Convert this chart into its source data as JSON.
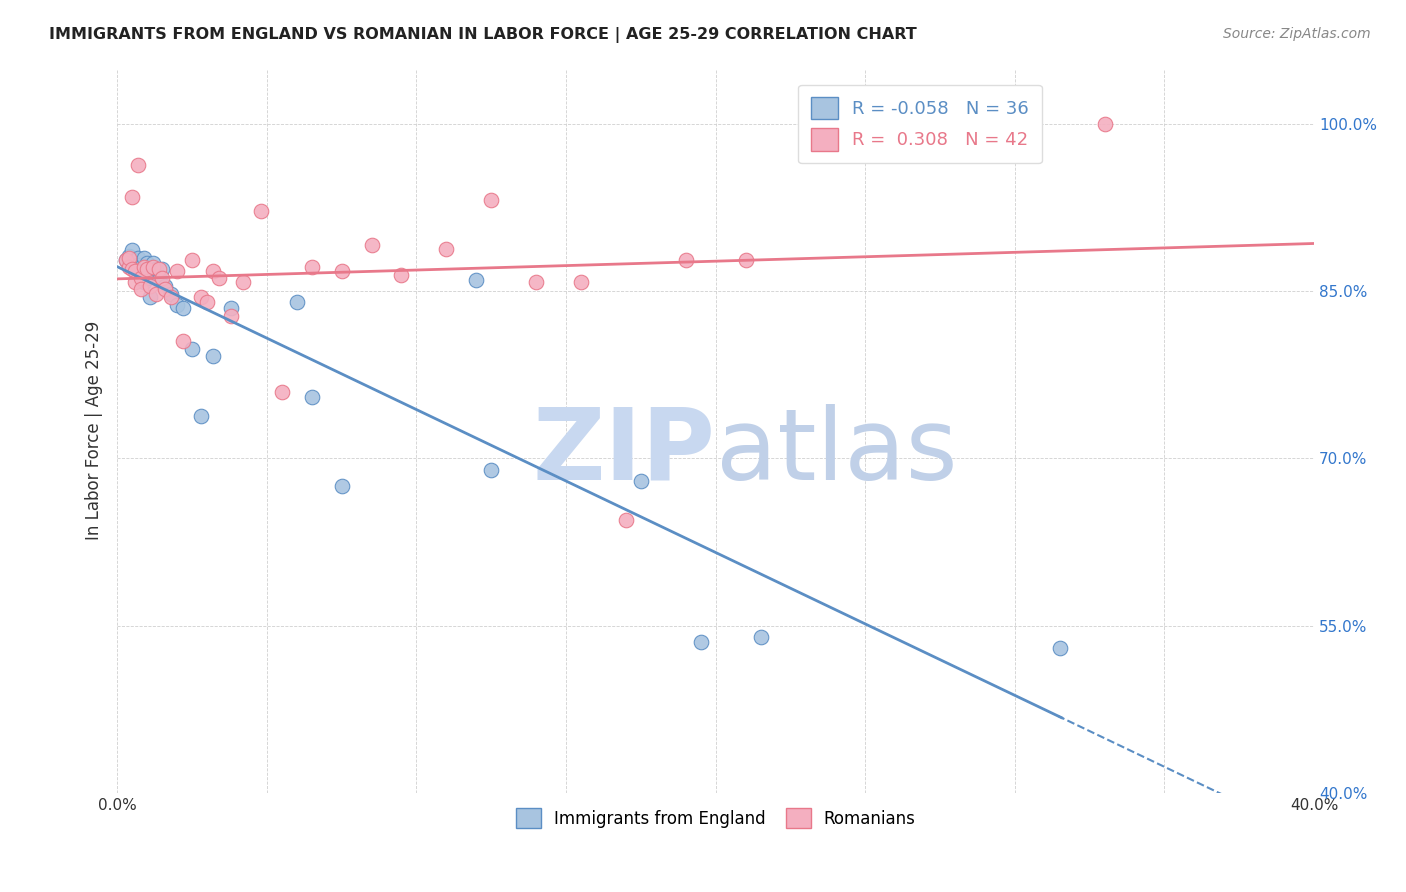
{
  "title": "IMMIGRANTS FROM ENGLAND VS ROMANIAN IN LABOR FORCE | AGE 25-29 CORRELATION CHART",
  "source": "Source: ZipAtlas.com",
  "ylabel": "In Labor Force | Age 25-29",
  "legend_labels": [
    "Immigrants from England",
    "Romanians"
  ],
  "R_england": -0.058,
  "N_england": 36,
  "R_romanian": 0.308,
  "N_romanian": 42,
  "england_color": "#a8c4e0",
  "romanian_color": "#f4afc0",
  "england_line_color": "#5b8ec4",
  "romanian_line_color": "#e8788a",
  "xlim": [
    0.0,
    0.4
  ],
  "ylim": [
    0.4,
    1.05
  ],
  "yticks": [
    0.4,
    0.55,
    0.7,
    0.85,
    1.0
  ],
  "ytick_labels": [
    "40.0%",
    "55.0%",
    "70.0%",
    "85.0%",
    "100.0%"
  ],
  "xticks": [
    0.0,
    0.05,
    0.1,
    0.15,
    0.2,
    0.25,
    0.3,
    0.35,
    0.4
  ],
  "xtick_labels": [
    "0.0%",
    "",
    "",
    "",
    "",
    "",
    "",
    "",
    "40.0%"
  ],
  "england_x": [
    0.003,
    0.004,
    0.004,
    0.005,
    0.006,
    0.006,
    0.007,
    0.007,
    0.008,
    0.008,
    0.009,
    0.009,
    0.01,
    0.01,
    0.011,
    0.012,
    0.013,
    0.014,
    0.015,
    0.016,
    0.018,
    0.02,
    0.022,
    0.025,
    0.028,
    0.032,
    0.038,
    0.06,
    0.065,
    0.075,
    0.12,
    0.125,
    0.175,
    0.195,
    0.215,
    0.315
  ],
  "england_y": [
    0.878,
    0.882,
    0.878,
    0.887,
    0.878,
    0.874,
    0.88,
    0.874,
    0.872,
    0.868,
    0.88,
    0.858,
    0.875,
    0.862,
    0.845,
    0.875,
    0.87,
    0.86,
    0.87,
    0.855,
    0.848,
    0.838,
    0.835,
    0.798,
    0.738,
    0.792,
    0.835,
    0.84,
    0.755,
    0.675,
    0.86,
    0.69,
    0.68,
    0.535,
    0.54,
    0.53
  ],
  "romanian_x": [
    0.003,
    0.004,
    0.004,
    0.005,
    0.005,
    0.006,
    0.006,
    0.007,
    0.008,
    0.008,
    0.009,
    0.01,
    0.011,
    0.012,
    0.013,
    0.014,
    0.015,
    0.016,
    0.018,
    0.02,
    0.022,
    0.025,
    0.028,
    0.03,
    0.032,
    0.034,
    0.038,
    0.042,
    0.048,
    0.055,
    0.065,
    0.075,
    0.085,
    0.095,
    0.11,
    0.125,
    0.14,
    0.155,
    0.17,
    0.19,
    0.21,
    0.33
  ],
  "romanian_y": [
    0.878,
    0.872,
    0.88,
    0.935,
    0.87,
    0.868,
    0.858,
    0.963,
    0.862,
    0.852,
    0.872,
    0.87,
    0.855,
    0.872,
    0.848,
    0.87,
    0.862,
    0.852,
    0.845,
    0.868,
    0.805,
    0.878,
    0.845,
    0.84,
    0.868,
    0.862,
    0.828,
    0.858,
    0.922,
    0.76,
    0.872,
    0.868,
    0.892,
    0.865,
    0.888,
    0.932,
    0.858,
    0.858,
    0.645,
    0.878,
    0.878,
    1.0
  ],
  "background_color": "#ffffff",
  "grid_color": "#d0d0d0",
  "watermark_zip": "ZIP",
  "watermark_atlas": "atlas",
  "watermark_color_zip": "#c8d8f0",
  "watermark_color_atlas": "#c0d0e8"
}
